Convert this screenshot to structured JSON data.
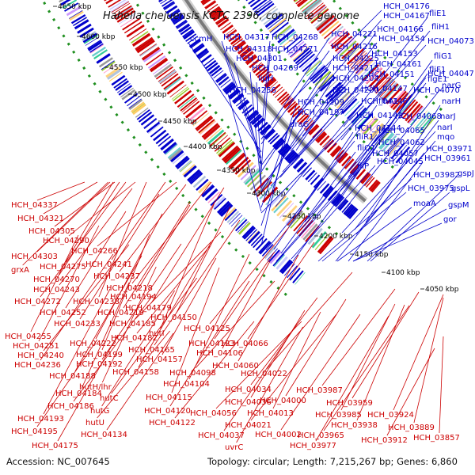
{
  "title": "Hahella chejuensis KCTC 2396, complete genome",
  "footer": {
    "accession": "Accession: NC_007645",
    "summary": "Topology: circular; Length: 7,215,267 bp; Genes: 6,860"
  },
  "colors": {
    "forward": "#0000cc",
    "reverse": "#cc0000",
    "backbone": "#7a7a7a",
    "ticks": "#1f8f1f"
  },
  "ticks": [
    "4650 kbp",
    "4600 kbp",
    "4550 kbp",
    "4500 kbp",
    "4450 kbp",
    "4400 kbp",
    "4350 kbp",
    "4300 kbp",
    "4250 kbp",
    "4200 kbp",
    "4150 kbp",
    "4100 kbp",
    "4050 kbp"
  ],
  "forward_labels": [
    "HCH_04176",
    "HCH_04167",
    "fliE1",
    "HCH_04166",
    "HCH_04154",
    "HCH_04073",
    "fliH1",
    "fliG1",
    "HCH_04153",
    "fliF1",
    "HCH_04161",
    "HCH_04047",
    "HCH_04151",
    "flgE1",
    "HCH_04070",
    "narG",
    "HCH_04147",
    "HCH_04146",
    "flhA1",
    "narH",
    "HCH_04142",
    "HCH_04068",
    "narJ",
    "HCH_04144",
    "HCH_04065",
    "narI",
    "fliR1",
    "HCH_04062",
    "mqo",
    "fliQ1",
    "HCH_04057",
    "HCH_03971",
    "HCH_04045",
    "fliP",
    "HCH_03961",
    "HCH_03982",
    "gspJ",
    "HCH_03975",
    "gspL",
    "moaA",
    "gspM",
    "gor",
    "ccmH",
    "HCH_04317",
    "HCH_04268",
    "HCH_04221",
    "HCH_04318",
    "HCH_04271",
    "HCH_04216",
    "HCH_04301",
    "HCH_04225",
    "HCH_04269",
    "HCH_04215",
    "lipH",
    "HCH_04204",
    "HCH_04256",
    "HCH_04200",
    "HCH_04209",
    "HCH_04197",
    "draG"
  ],
  "reverse_labels": [
    "HCH_04337",
    "HCH_04321",
    "HCH_04305",
    "HCH_04290",
    "HCH_04303",
    "HCH_04266",
    "grxA",
    "HCH_04275",
    "HCH_04241",
    "HCH_04270",
    "HCH_04237",
    "HCH_04243",
    "HCH_04218",
    "HCH_04272",
    "HCH_04238",
    "HCH_04194",
    "HCH_04252",
    "HCH_04219",
    "HCH_04179",
    "HCH_04233",
    "HCH_04185",
    "HCH_04255",
    "HCH_04150",
    "HCH_04251",
    "HCH_04222",
    "HCH_04182",
    "HCH_04125",
    "HCH_04240",
    "HCH_04199",
    "hutI",
    "HCH_04123",
    "HCH_04066",
    "HCH_04236",
    "HCH_04192",
    "HCH_04165",
    "HCH_04106",
    "HCH_04157",
    "HCH_04060",
    "HCH_04188",
    "HCH_04158",
    "HCH_04098",
    "HCH_04022",
    "HCH_04184",
    "hutH/lhr",
    "HCH_04104",
    "HCH_04034",
    "HCH_03987",
    "HCH_04186",
    "hutC",
    "HCH_04115",
    "HCH_04036",
    "HCH_04000",
    "HCH_03959",
    "hutG",
    "HCH_04120",
    "HCH_04056",
    "HCH_04013",
    "HCH_03985",
    "HCH_03924",
    "HCH_04193",
    "hutU",
    "HCH_04122",
    "HCH_04021",
    "HCH_03938",
    "HCH_03889",
    "HCH_04195",
    "HCH_04134",
    "HCH_04037",
    "HCH_04002",
    "HCH_03965",
    "HCH_03912",
    "HCH_03857",
    "HCH_04175",
    "uvrC",
    "HCH_03977"
  ]
}
